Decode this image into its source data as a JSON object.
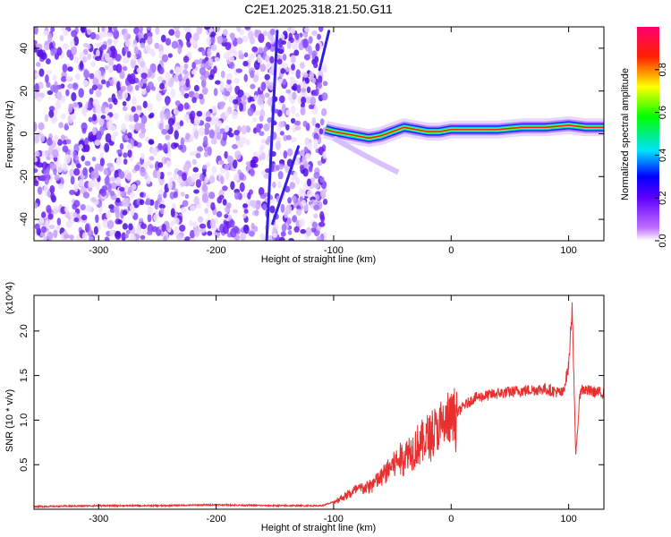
{
  "chart_data": [
    {
      "type": "heatmap",
      "title": "C2E1.2025.318.21.50.G11",
      "xlabel": "Height of straight line (km)",
      "ylabel": "Frequency (Hz)",
      "xlim": [
        -355,
        130
      ],
      "ylim": [
        -50,
        50
      ],
      "xticks": [
        -300,
        -200,
        -100,
        0,
        100
      ],
      "yticks": [
        -40,
        -20,
        0,
        20,
        40
      ],
      "grid": false,
      "colorbar": {
        "label": "Normalized spectral amplitude",
        "range": [
          0,
          1
        ],
        "ticks": [
          0.0,
          0.2,
          0.4,
          0.6,
          0.8
        ],
        "tick_labels": [
          "0.0",
          "0.2",
          "0.4",
          "0.6",
          "0.8"
        ],
        "colormap": [
          "#ffffff",
          "#b000ff",
          "#0000ff",
          "#00ffff",
          "#00ff00",
          "#ffff00",
          "#ff0000",
          "#ff0080"
        ]
      },
      "regions": [
        {
          "description": "noise",
          "x_range": [
            -355,
            -107
          ],
          "y_range": [
            -50,
            50
          ],
          "amplitude": 0.12
        },
        {
          "description": "carrier",
          "x_range": [
            -107,
            130
          ],
          "y_center": 2,
          "amplitude": 0.9
        }
      ],
      "tracks": [
        {
          "x": [
            -157,
            -148
          ],
          "y": [
            -50,
            48
          ],
          "amplitude": 0.2
        },
        {
          "x": [
            -152,
            -130
          ],
          "y": [
            -42,
            -6
          ],
          "amplitude": 0.3
        },
        {
          "x": [
            -112,
            -104
          ],
          "y": [
            30,
            48
          ],
          "amplitude": 0.2
        }
      ],
      "carrier_line": {
        "x": [
          -107,
          -100,
          -90,
          -80,
          -70,
          -60,
          -50,
          -40,
          -30,
          -20,
          -10,
          0,
          20,
          40,
          60,
          80,
          100,
          115,
          130
        ],
        "y": [
          2,
          1,
          0,
          -1,
          -2,
          -1,
          1,
          3,
          2,
          1,
          1,
          2,
          2,
          2,
          3,
          3,
          4,
          3,
          3
        ]
      }
    },
    {
      "type": "line",
      "xlabel": "Height of straight line (km)",
      "ylabel": "SNR (10 * v/v)",
      "yscale_label": "(x10^4)",
      "xlim": [
        -355,
        130
      ],
      "ylim": [
        0,
        2.4
      ],
      "xticks": [
        -300,
        -200,
        -100,
        0,
        100
      ],
      "yticks": [
        0.5,
        1.0,
        1.5,
        2.0
      ],
      "ytick_labels": [
        "0.5",
        "1.0",
        "1.5",
        "2.0"
      ],
      "grid": false,
      "series": [
        {
          "color": "#e83030",
          "x": [
            -355,
            -300,
            -250,
            -200,
            -150,
            -110,
            -100,
            -90,
            -80,
            -70,
            -60,
            -50,
            -40,
            -30,
            -20,
            -10,
            0,
            10,
            20,
            40,
            60,
            80,
            95,
            100,
            103,
            106,
            110,
            120,
            130
          ],
          "y": [
            0.03,
            0.04,
            0.04,
            0.05,
            0.04,
            0.04,
            0.08,
            0.15,
            0.22,
            0.25,
            0.35,
            0.5,
            0.6,
            0.7,
            0.8,
            0.9,
            1.0,
            1.15,
            1.25,
            1.3,
            1.33,
            1.35,
            1.3,
            1.6,
            2.3,
            0.6,
            1.35,
            1.32,
            1.3
          ]
        }
      ]
    }
  ]
}
